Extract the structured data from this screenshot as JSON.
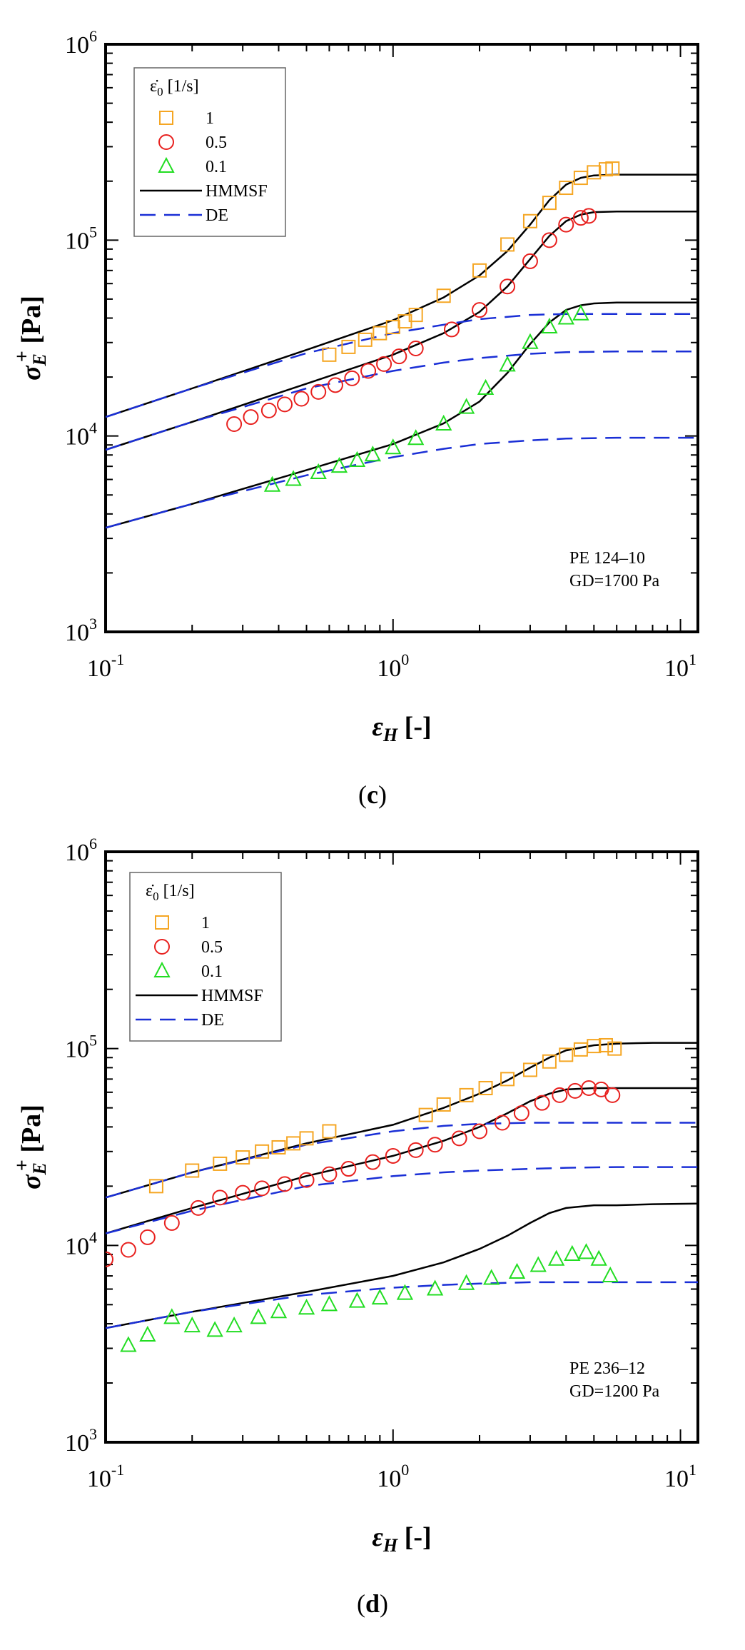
{
  "chart_data": [
    {
      "type": "line",
      "panel_label": "c",
      "xscale": "log",
      "yscale": "log",
      "xlim": [
        0.1,
        11.5
      ],
      "ylim": [
        1000,
        1000000
      ],
      "xlabel": "εH [-]",
      "ylabel": "σE+ [Pa]",
      "x_ticks": [
        0.1,
        1,
        10
      ],
      "y_ticks": [
        1000,
        10000,
        100000,
        1000000
      ],
      "x_tick_base": "10",
      "x_tick_exponents": [
        "-1",
        "0",
        "1"
      ],
      "y_tick_base": "10",
      "y_tick_exponents": [
        "3",
        "4",
        "5",
        "6"
      ],
      "legend_title": "ε̇0 [1/s]",
      "legend_position": "top-left",
      "annotation": [
        "PE 124–10",
        "GD=1700 Pa"
      ],
      "series": [
        {
          "name": "1",
          "kind": "markers",
          "marker": "square",
          "color": "#f5a623",
          "x": [
            0.6,
            0.7,
            0.8,
            0.9,
            1.0,
            1.1,
            1.2,
            1.5,
            2.0,
            2.5,
            3.0,
            3.5,
            4.0,
            4.5,
            5.0,
            5.5,
            5.8
          ],
          "y": [
            26000,
            28500,
            31000,
            33500,
            36000,
            38500,
            41500,
            52000,
            70000,
            95000,
            125000,
            155000,
            185000,
            208000,
            222000,
            230000,
            232000
          ]
        },
        {
          "name": "0.5",
          "kind": "markers",
          "marker": "circle",
          "color": "#e8201e",
          "x": [
            0.28,
            0.32,
            0.37,
            0.42,
            0.48,
            0.55,
            0.63,
            0.72,
            0.82,
            0.93,
            1.05,
            1.2,
            1.6,
            2.0,
            2.5,
            3.0,
            3.5,
            4.0,
            4.5,
            4.8
          ],
          "y": [
            11500,
            12500,
            13500,
            14500,
            15500,
            16800,
            18200,
            19700,
            21500,
            23300,
            25500,
            28000,
            35000,
            44000,
            58000,
            78000,
            100000,
            120000,
            130000,
            133000
          ]
        },
        {
          "name": "0.1",
          "kind": "markers",
          "marker": "triangle",
          "color": "#22dd22",
          "x": [
            0.38,
            0.45,
            0.55,
            0.65,
            0.75,
            0.85,
            1.0,
            1.2,
            1.5,
            1.8,
            2.1,
            2.5,
            3.0,
            3.5,
            4.0,
            4.5
          ],
          "y": [
            5600,
            6000,
            6500,
            7000,
            7500,
            8000,
            8700,
            9700,
            11500,
            14000,
            17500,
            23000,
            30000,
            36000,
            40000,
            42000
          ]
        },
        {
          "name": "HMMSF",
          "kind": "line",
          "dash": "solid",
          "color": "#000000",
          "group": "1",
          "x": [
            0.1,
            0.2,
            0.5,
            1.0,
            1.5,
            2.0,
            2.5,
            3.0,
            3.5,
            4.0,
            4.5,
            5.0,
            6.0,
            8.0,
            11.5
          ],
          "y": [
            12500,
            17500,
            27500,
            39000,
            51000,
            66000,
            88000,
            120000,
            160000,
            192000,
            208000,
            214000,
            216000,
            216000,
            216000
          ]
        },
        {
          "name": "HMMSF",
          "kind": "line",
          "dash": "solid",
          "color": "#000000",
          "group": "0.5",
          "x": [
            0.1,
            0.2,
            0.5,
            1.0,
            1.5,
            2.0,
            2.5,
            3.0,
            3.5,
            4.0,
            4.5,
            5.0,
            6.0,
            8.0,
            11.5
          ],
          "y": [
            8500,
            11800,
            18500,
            26000,
            33500,
            43000,
            58000,
            80000,
            105000,
            125000,
            135000,
            139000,
            140000,
            140000,
            140000
          ]
        },
        {
          "name": "HMMSF",
          "kind": "line",
          "dash": "solid",
          "color": "#000000",
          "group": "0.1",
          "x": [
            0.1,
            0.2,
            0.5,
            1.0,
            1.5,
            2.0,
            2.5,
            3.0,
            3.5,
            4.0,
            4.5,
            5.0,
            6.0,
            8.0,
            11.5
          ],
          "y": [
            3400,
            4500,
            6700,
            9100,
            11600,
            15000,
            21000,
            29500,
            38000,
            44000,
            46500,
            47500,
            48000,
            48000,
            48000
          ]
        },
        {
          "name": "DE",
          "kind": "line",
          "dash": "dashed",
          "color": "#1a2fd6",
          "group": "1",
          "x": [
            0.1,
            0.2,
            0.5,
            1.0,
            1.5,
            2.0,
            3.0,
            4.0,
            6.0,
            11.5
          ],
          "y": [
            12500,
            17500,
            26500,
            33500,
            37000,
            39500,
            41500,
            42000,
            42000,
            42000
          ]
        },
        {
          "name": "DE",
          "kind": "line",
          "dash": "dashed",
          "color": "#1a2fd6",
          "group": "0.5",
          "x": [
            0.1,
            0.2,
            0.5,
            1.0,
            1.5,
            2.0,
            3.0,
            4.0,
            6.0,
            11.5
          ],
          "y": [
            8500,
            11800,
            17500,
            21500,
            23700,
            25000,
            26300,
            26800,
            27000,
            27000
          ]
        },
        {
          "name": "DE",
          "kind": "line",
          "dash": "dashed",
          "color": "#1a2fd6",
          "group": "0.1",
          "x": [
            0.1,
            0.2,
            0.5,
            1.0,
            1.5,
            2.0,
            3.0,
            4.0,
            6.0,
            11.5
          ],
          "y": [
            3400,
            4500,
            6300,
            7800,
            8600,
            9100,
            9500,
            9700,
            9800,
            9800
          ]
        }
      ]
    },
    {
      "type": "line",
      "panel_label": "d",
      "xscale": "log",
      "yscale": "log",
      "xlim": [
        0.1,
        11.5
      ],
      "ylim": [
        1000,
        1000000
      ],
      "xlabel": "εH [-]",
      "ylabel": "σE+ [Pa]",
      "x_ticks": [
        0.1,
        1,
        10
      ],
      "y_ticks": [
        1000,
        10000,
        100000,
        1000000
      ],
      "x_tick_base": "10",
      "x_tick_exponents": [
        "-1",
        "0",
        "1"
      ],
      "y_tick_base": "10",
      "y_tick_exponents": [
        "3",
        "4",
        "5",
        "6"
      ],
      "legend_title": "ε̇0 [1/s]",
      "legend_position": "top-left",
      "annotation": [
        "PE 236–12",
        "GD=1200 Pa"
      ],
      "series": [
        {
          "name": "1",
          "kind": "markers",
          "marker": "square",
          "color": "#f5a623",
          "x": [
            0.15,
            0.2,
            0.25,
            0.3,
            0.35,
            0.4,
            0.45,
            0.5,
            0.6,
            1.3,
            1.5,
            1.8,
            2.1,
            2.5,
            3.0,
            3.5,
            4.0,
            4.5,
            5.0,
            5.5,
            5.9
          ],
          "y": [
            20000,
            24000,
            26000,
            28000,
            30000,
            31500,
            33000,
            35000,
            38000,
            46000,
            52000,
            58000,
            63000,
            70000,
            78000,
            86000,
            93000,
            99000,
            103000,
            104000,
            100000
          ]
        },
        {
          "name": "0.5",
          "kind": "markers",
          "marker": "circle",
          "color": "#e8201e",
          "x": [
            0.1,
            0.12,
            0.14,
            0.17,
            0.21,
            0.25,
            0.3,
            0.35,
            0.42,
            0.5,
            0.6,
            0.7,
            0.85,
            1.0,
            1.2,
            1.4,
            1.7,
            2.0,
            2.4,
            2.8,
            3.3,
            3.8,
            4.3,
            4.8,
            5.3,
            5.8
          ],
          "y": [
            8500,
            9500,
            11000,
            13000,
            15500,
            17500,
            18500,
            19500,
            20500,
            21500,
            23000,
            24500,
            26500,
            28500,
            30500,
            32500,
            35000,
            38000,
            42000,
            47000,
            53000,
            58000,
            61000,
            63000,
            62000,
            58000
          ]
        },
        {
          "name": "0.1",
          "kind": "markers",
          "marker": "triangle",
          "color": "#22dd22",
          "x": [
            0.12,
            0.14,
            0.17,
            0.2,
            0.24,
            0.28,
            0.34,
            0.4,
            0.5,
            0.6,
            0.75,
            0.9,
            1.1,
            1.4,
            1.8,
            2.2,
            2.7,
            3.2,
            3.7,
            4.2,
            4.7,
            5.2,
            5.7
          ],
          "y": [
            3100,
            3500,
            4300,
            3900,
            3700,
            3900,
            4300,
            4600,
            4800,
            5000,
            5200,
            5400,
            5700,
            6000,
            6400,
            6800,
            7300,
            7900,
            8500,
            9000,
            9200,
            8500,
            7000
          ]
        },
        {
          "name": "HMMSF",
          "kind": "line",
          "dash": "solid",
          "color": "#000000",
          "group": "1",
          "x": [
            0.1,
            0.2,
            0.5,
            1.0,
            1.5,
            2.0,
            2.5,
            3.0,
            3.5,
            4.0,
            5.0,
            6.0,
            8.0,
            11.5
          ],
          "y": [
            17500,
            23500,
            33000,
            41000,
            50000,
            59000,
            69000,
            80000,
            90000,
            98000,
            104000,
            106000,
            107000,
            107000
          ]
        },
        {
          "name": "HMMSF",
          "kind": "line",
          "dash": "solid",
          "color": "#000000",
          "group": "0.5",
          "x": [
            0.1,
            0.2,
            0.5,
            1.0,
            1.5,
            2.0,
            2.5,
            3.0,
            3.5,
            4.0,
            5.0,
            6.0,
            8.0,
            11.5
          ],
          "y": [
            11500,
            15500,
            22500,
            28500,
            34000,
            40000,
            47000,
            54000,
            59000,
            62000,
            63000,
            63000,
            63000,
            63000
          ]
        },
        {
          "name": "HMMSF",
          "kind": "line",
          "dash": "solid",
          "color": "#000000",
          "group": "0.1",
          "x": [
            0.1,
            0.2,
            0.5,
            1.0,
            1.5,
            2.0,
            2.5,
            3.0,
            3.5,
            4.0,
            5.0,
            6.0,
            8.0,
            11.5
          ],
          "y": [
            3800,
            4600,
            5800,
            7000,
            8200,
            9600,
            11200,
            13000,
            14600,
            15500,
            16000,
            16000,
            16200,
            16300
          ]
        },
        {
          "name": "DE",
          "kind": "line",
          "dash": "dashed",
          "color": "#1a2fd6",
          "group": "1",
          "x": [
            0.1,
            0.2,
            0.5,
            1.0,
            1.5,
            2.0,
            3.0,
            4.0,
            6.0,
            11.5
          ],
          "y": [
            17500,
            23500,
            32500,
            38000,
            40500,
            41500,
            42000,
            42000,
            42000,
            42000
          ]
        },
        {
          "name": "DE",
          "kind": "line",
          "dash": "dashed",
          "color": "#1a2fd6",
          "group": "0.5",
          "x": [
            0.1,
            0.2,
            0.5,
            1.0,
            1.5,
            2.0,
            3.0,
            4.0,
            6.0,
            11.5
          ],
          "y": [
            11500,
            15000,
            20000,
            22500,
            23500,
            24000,
            24500,
            24800,
            25000,
            25000
          ]
        },
        {
          "name": "DE",
          "kind": "line",
          "dash": "dashed",
          "color": "#1a2fd6",
          "group": "0.1",
          "x": [
            0.1,
            0.2,
            0.5,
            1.0,
            1.5,
            2.0,
            3.0,
            4.0,
            6.0,
            11.5
          ],
          "y": [
            3800,
            4600,
            5600,
            6100,
            6300,
            6400,
            6500,
            6500,
            6500,
            6500
          ]
        }
      ]
    }
  ]
}
